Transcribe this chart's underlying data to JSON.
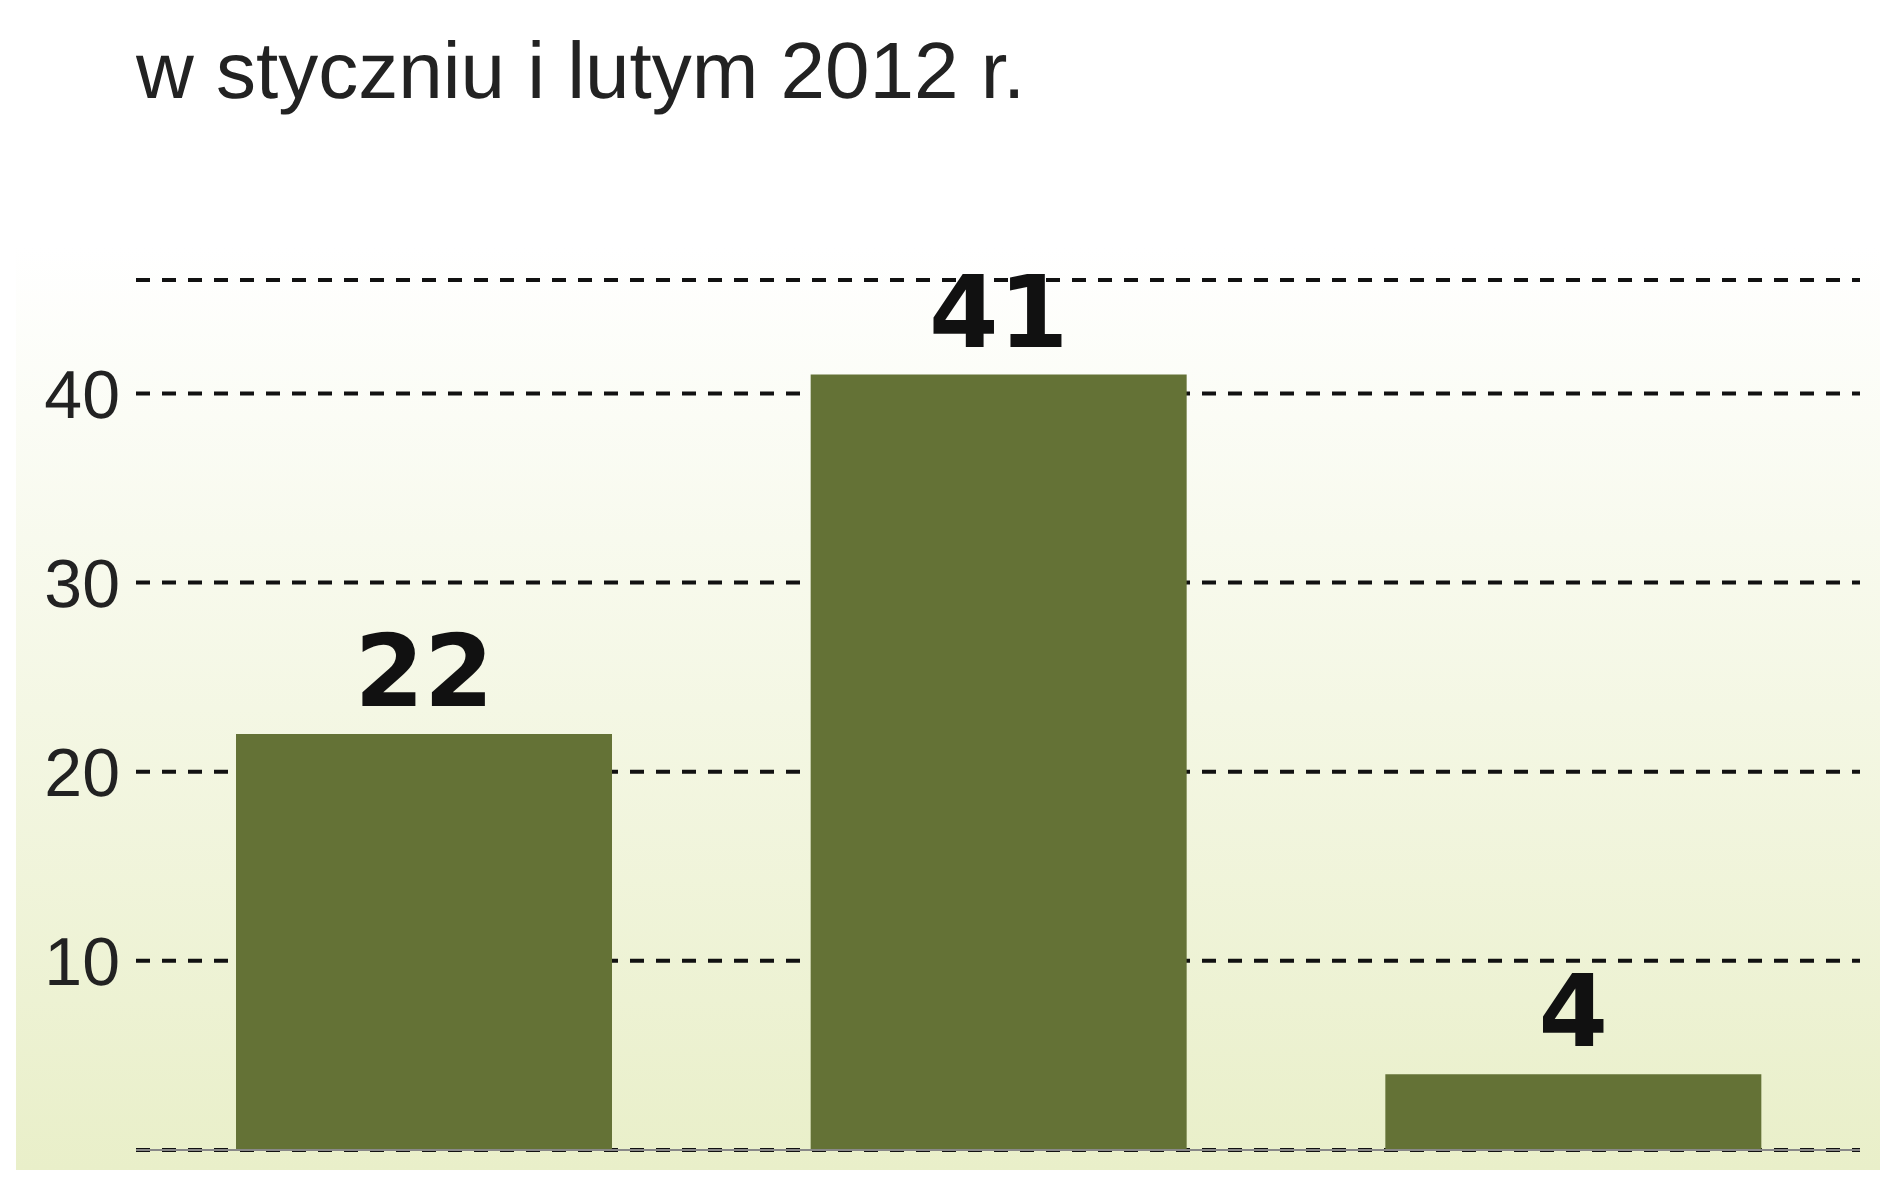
{
  "chart_data": {
    "type": "bar",
    "title": "w styczniu i lutym 2012 r.",
    "categories": [
      null,
      null,
      null
    ],
    "values": [
      22,
      41,
      4
    ],
    "color": "#647236",
    "ylim": [
      0,
      46
    ],
    "yticks": [
      10,
      20,
      30,
      40
    ],
    "grid": "y",
    "data_labels": true
  }
}
